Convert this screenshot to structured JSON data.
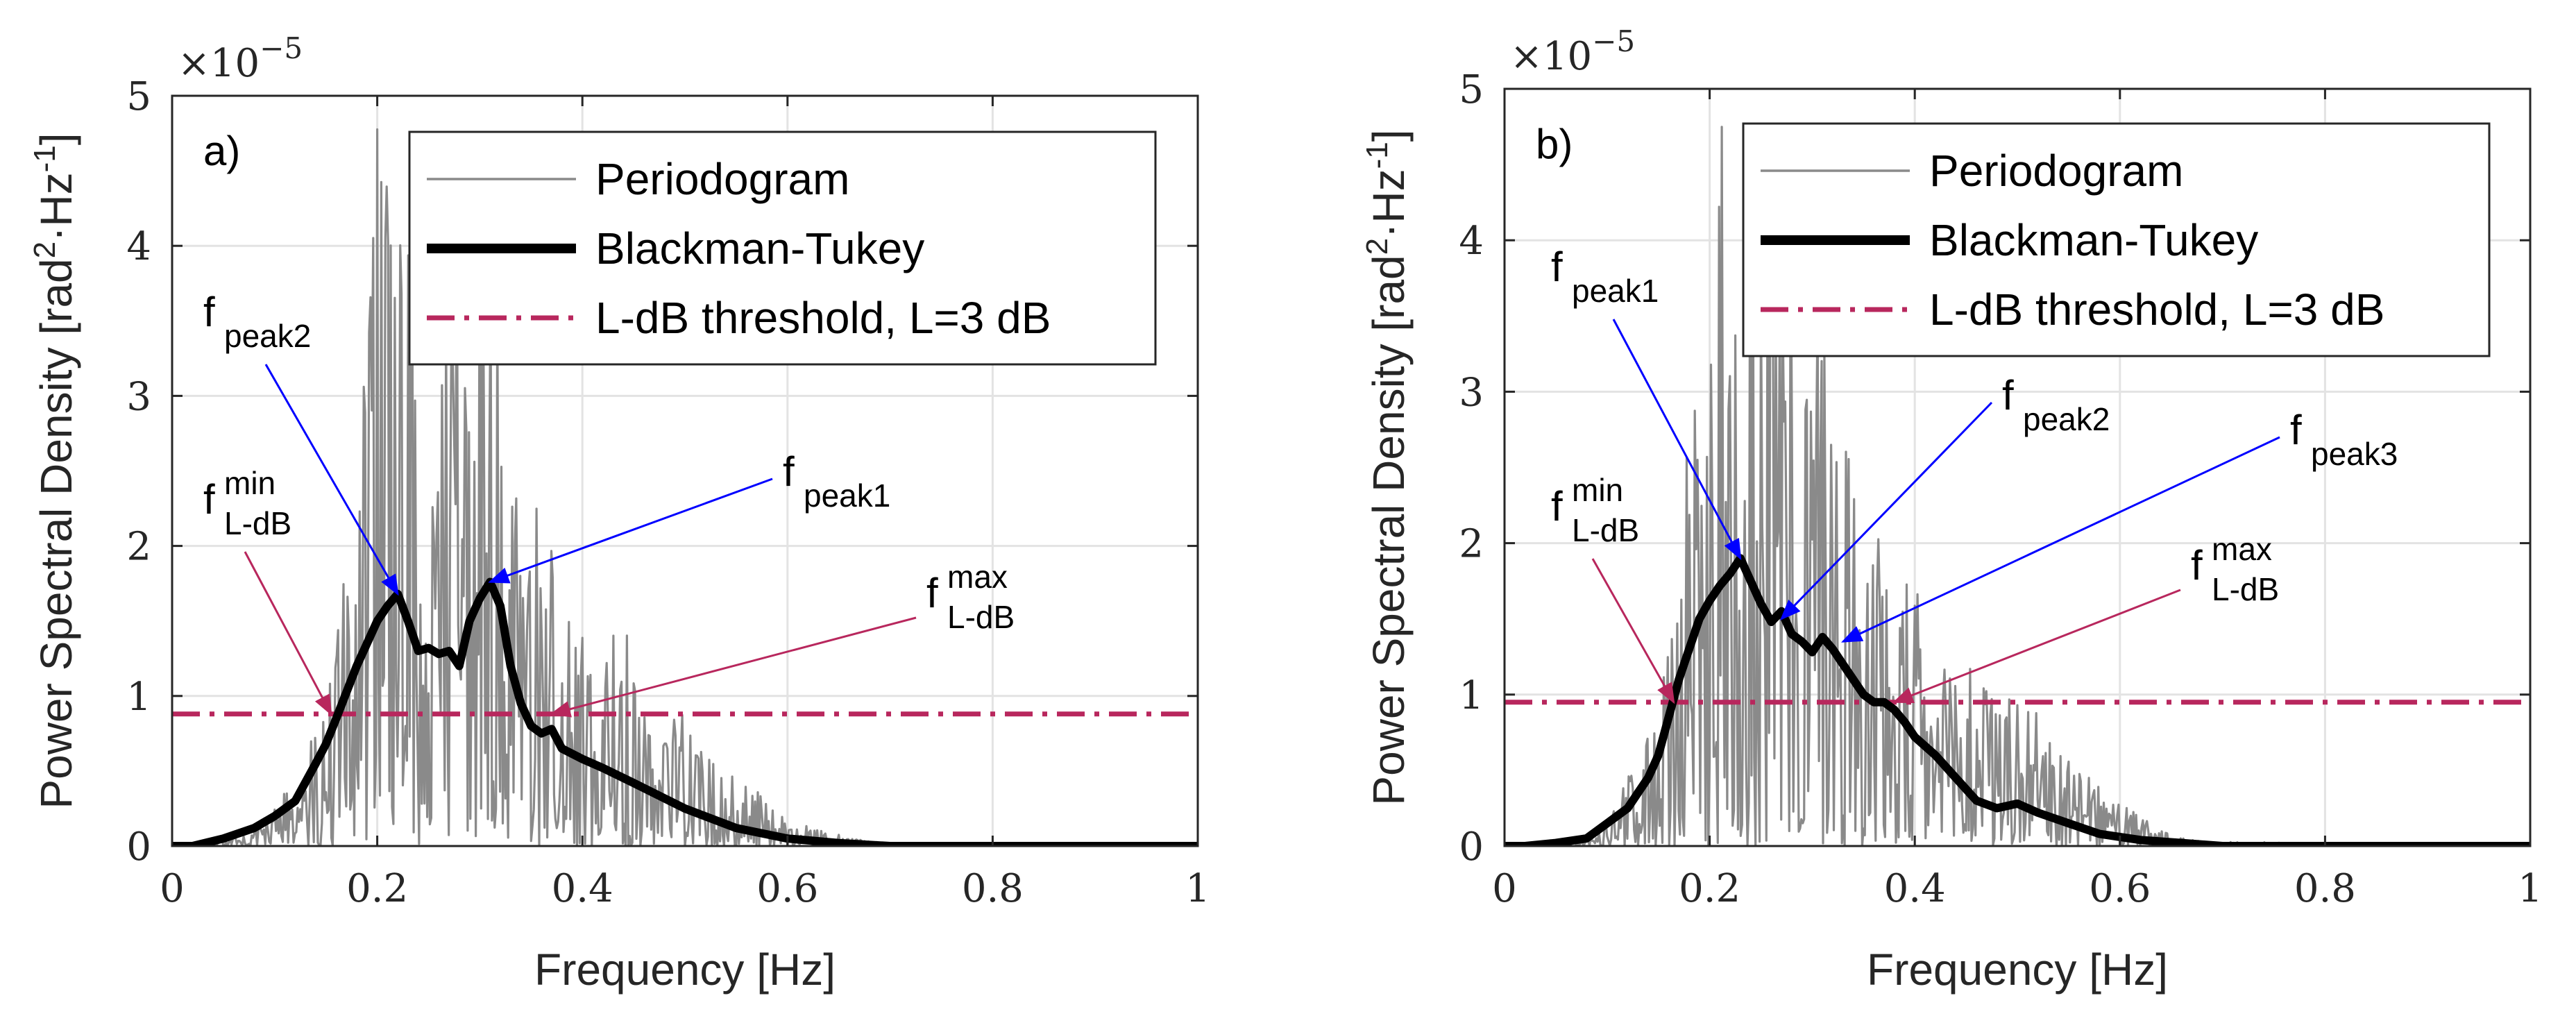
{
  "chart_data": [
    {
      "type": "line",
      "panel_label": "a)",
      "x_axis": {
        "label": "Frequency [Hz]",
        "range": [
          0,
          1
        ],
        "ticks": [
          0,
          0.2,
          0.4,
          0.6,
          0.8,
          1
        ],
        "tick_labels": [
          "0",
          "0.2",
          "0.4",
          "0.6",
          "0.8",
          "1"
        ]
      },
      "y_axis": {
        "label": "Power Spectral Density [rad²·Hz⁻¹]",
        "label_parts": [
          "Power Spectral Density [rad",
          "2",
          "·Hz",
          "-1",
          "]"
        ],
        "range": [
          0,
          5
        ],
        "ticks": [
          0,
          1,
          2,
          3,
          4,
          5
        ],
        "tick_labels": [
          "0",
          "1",
          "2",
          "3",
          "4",
          "5"
        ],
        "exponent": "×10",
        "exponent_power": "−5"
      },
      "grid": true,
      "legend": {
        "position": "top-right",
        "entries": [
          "Periodogram",
          "Blackman-Tukey",
          "L-dB threshold, L=3 dB"
        ]
      },
      "series": [
        {
          "name": "Periodogram",
          "style": "thin-gray",
          "envelope_x": [
            0.0,
            0.05,
            0.08,
            0.1,
            0.12,
            0.14,
            0.16,
            0.18,
            0.2,
            0.22,
            0.24,
            0.26,
            0.28,
            0.3,
            0.32,
            0.34,
            0.36,
            0.38,
            0.4,
            0.42,
            0.44,
            0.46,
            0.48,
            0.5,
            0.52,
            0.55,
            0.58,
            0.62,
            0.66,
            0.7,
            1.0
          ],
          "envelope_y": [
            0.0,
            0.05,
            0.1,
            0.25,
            0.5,
            0.8,
            1.5,
            2.5,
            4.9,
            4.5,
            4.2,
            3.6,
            4.4,
            4.8,
            3.5,
            2.8,
            2.2,
            1.8,
            1.5,
            1.2,
            1.6,
            0.9,
            0.8,
            1.0,
            0.6,
            0.5,
            0.3,
            0.15,
            0.05,
            0.02,
            0.0
          ]
        },
        {
          "name": "Blackman-Tukey",
          "style": "thick-black",
          "x": [
            0.0,
            0.02,
            0.05,
            0.08,
            0.1,
            0.12,
            0.14,
            0.15,
            0.16,
            0.18,
            0.2,
            0.21,
            0.22,
            0.23,
            0.24,
            0.25,
            0.26,
            0.27,
            0.28,
            0.29,
            0.3,
            0.31,
            0.32,
            0.33,
            0.34,
            0.35,
            0.36,
            0.37,
            0.38,
            0.4,
            0.42,
            0.45,
            0.5,
            0.55,
            0.6,
            0.65,
            0.7,
            0.8,
            0.9,
            1.0
          ],
          "y": [
            0.0,
            0.0,
            0.05,
            0.12,
            0.2,
            0.3,
            0.55,
            0.68,
            0.85,
            1.2,
            1.5,
            1.6,
            1.68,
            1.5,
            1.3,
            1.32,
            1.28,
            1.3,
            1.2,
            1.5,
            1.65,
            1.76,
            1.6,
            1.2,
            0.95,
            0.8,
            0.75,
            0.78,
            0.65,
            0.58,
            0.52,
            0.42,
            0.25,
            0.12,
            0.05,
            0.02,
            0.0,
            0.0,
            0.0,
            0.0
          ]
        },
        {
          "name": "L-dB threshold, L=3 dB",
          "style": "dash-dot-magenta",
          "y": 0.88
        }
      ],
      "annotations": [
        {
          "label": "f",
          "sub": "peak2",
          "sup": "",
          "x": 0.22,
          "y": 1.68,
          "arrow_color": "blue"
        },
        {
          "label": "f",
          "sub": "peak1",
          "sup": "",
          "x": 0.31,
          "y": 1.76,
          "arrow_color": "blue"
        },
        {
          "label": "f",
          "sub": "L-dB",
          "sup": "min",
          "x": 0.155,
          "y": 0.88,
          "arrow_color": "magenta"
        },
        {
          "label": "f",
          "sub": "L-dB",
          "sup": "max",
          "x": 0.37,
          "y": 0.88,
          "arrow_color": "magenta"
        }
      ]
    },
    {
      "type": "line",
      "panel_label": "b)",
      "x_axis": {
        "label": "Frequency [Hz]",
        "range": [
          0,
          1
        ],
        "ticks": [
          0,
          0.2,
          0.4,
          0.6,
          0.8,
          1
        ],
        "tick_labels": [
          "0",
          "0.2",
          "0.4",
          "0.6",
          "0.8",
          "1"
        ]
      },
      "y_axis": {
        "label": "Power Spectral Density [rad²·Hz⁻¹]",
        "label_parts": [
          "Power Spectral Density [rad",
          "2",
          "·Hz",
          "-1",
          "]"
        ],
        "range": [
          0,
          5
        ],
        "ticks": [
          0,
          1,
          2,
          3,
          4,
          5
        ],
        "tick_labels": [
          "0",
          "1",
          "2",
          "3",
          "4",
          "5"
        ],
        "exponent": "×10",
        "exponent_power": "−5"
      },
      "grid": true,
      "legend": {
        "position": "top-right",
        "entries": [
          "Periodogram",
          "Blackman-Tukey",
          "L-dB threshold, L=3 dB"
        ]
      },
      "series": [
        {
          "name": "Periodogram",
          "style": "thin-gray",
          "envelope_x": [
            0.0,
            0.06,
            0.09,
            0.11,
            0.13,
            0.15,
            0.17,
            0.19,
            0.21,
            0.23,
            0.25,
            0.27,
            0.29,
            0.31,
            0.33,
            0.35,
            0.37,
            0.39,
            0.41,
            0.43,
            0.45,
            0.48,
            0.5,
            0.53,
            0.56,
            0.6,
            0.64,
            0.68,
            1.0
          ],
          "envelope_y": [
            0.0,
            0.05,
            0.1,
            0.3,
            0.6,
            1.0,
            2.0,
            3.5,
            4.9,
            4.9,
            4.9,
            4.5,
            4.0,
            3.8,
            3.2,
            2.5,
            2.0,
            1.8,
            1.6,
            1.2,
            1.5,
            1.0,
            1.2,
            0.7,
            0.5,
            0.3,
            0.1,
            0.03,
            0.0
          ]
        },
        {
          "name": "Blackman-Tukey",
          "style": "thick-black",
          "x": [
            0.0,
            0.02,
            0.05,
            0.08,
            0.1,
            0.12,
            0.13,
            0.14,
            0.15,
            0.16,
            0.17,
            0.18,
            0.19,
            0.2,
            0.21,
            0.22,
            0.23,
            0.24,
            0.25,
            0.26,
            0.27,
            0.28,
            0.29,
            0.3,
            0.31,
            0.32,
            0.33,
            0.34,
            0.35,
            0.36,
            0.37,
            0.38,
            0.39,
            0.4,
            0.42,
            0.44,
            0.46,
            0.48,
            0.5,
            0.52,
            0.55,
            0.58,
            0.62,
            0.66,
            0.7,
            0.8,
            0.9,
            1.0
          ],
          "y": [
            0.0,
            0.0,
            0.02,
            0.05,
            0.15,
            0.25,
            0.35,
            0.45,
            0.6,
            0.85,
            1.1,
            1.3,
            1.5,
            1.62,
            1.72,
            1.8,
            1.9,
            1.75,
            1.6,
            1.48,
            1.55,
            1.4,
            1.35,
            1.28,
            1.38,
            1.3,
            1.2,
            1.1,
            1.0,
            0.95,
            0.95,
            0.9,
            0.82,
            0.72,
            0.6,
            0.45,
            0.3,
            0.25,
            0.28,
            0.22,
            0.15,
            0.08,
            0.04,
            0.02,
            0.0,
            0.0,
            0.0,
            0.0
          ]
        },
        {
          "name": "L-dB threshold, L=3 dB",
          "style": "dash-dot-magenta",
          "y": 0.95
        }
      ],
      "annotations": [
        {
          "label": "f",
          "sub": "peak1",
          "sup": "",
          "x": 0.23,
          "y": 1.9,
          "arrow_color": "blue"
        },
        {
          "label": "f",
          "sub": "peak2",
          "sup": "",
          "x": 0.27,
          "y": 1.5,
          "arrow_color": "blue"
        },
        {
          "label": "f",
          "sub": "peak3",
          "sup": "",
          "x": 0.33,
          "y": 1.35,
          "arrow_color": "blue"
        },
        {
          "label": "f",
          "sub": "L-dB",
          "sup": "min",
          "x": 0.165,
          "y": 0.95,
          "arrow_color": "magenta"
        },
        {
          "label": "f",
          "sub": "L-dB",
          "sup": "max",
          "x": 0.38,
          "y": 0.95,
          "arrow_color": "magenta"
        }
      ]
    }
  ],
  "colors": {
    "periodogram": "#8a8a8a",
    "blackman_tukey": "#000000",
    "threshold": "#b8275d",
    "arrow_blue": "#0000ff",
    "arrow_magenta": "#b8275d",
    "grid": "#e3e3e3",
    "axis": "#262626"
  }
}
